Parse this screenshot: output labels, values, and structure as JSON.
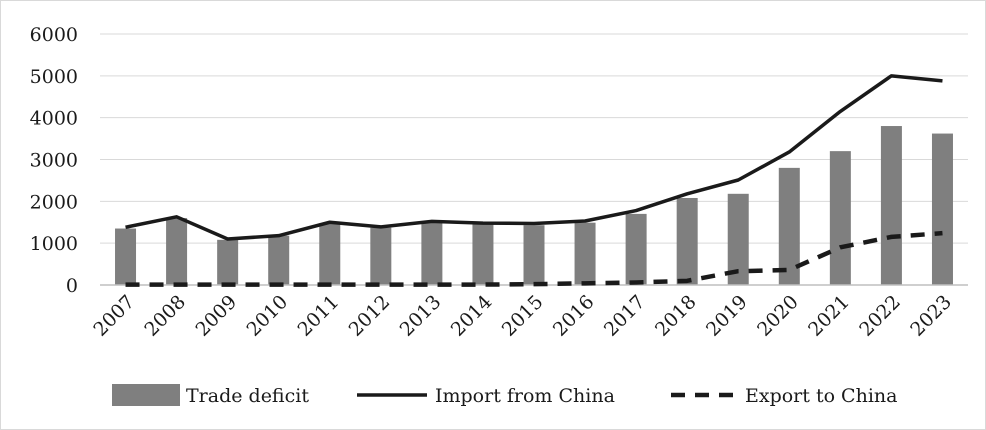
{
  "chart_data": {
    "type": "bar",
    "categories": [
      "2007",
      "2008",
      "2009",
      "2010",
      "2011",
      "2012",
      "2013",
      "2014",
      "2015",
      "2016",
      "2017",
      "2018",
      "2019",
      "2020",
      "2021",
      "2022",
      "2023"
    ],
    "ylim": [
      0,
      6000
    ],
    "yticks": [
      "0",
      "1000",
      "2000",
      "3000",
      "4000",
      "5000",
      "6000"
    ],
    "grid": true,
    "legend_position": "bottom",
    "series": [
      {
        "name": "Trade deficit",
        "kind": "bar",
        "color": "#7f7f7f",
        "values": [
          1350,
          1600,
          1080,
          1180,
          1470,
          1370,
          1510,
          1450,
          1430,
          1490,
          1700,
          2080,
          2180,
          2800,
          3200,
          3800,
          3620
        ]
      },
      {
        "name": "Import from China",
        "kind": "line",
        "style": "solid",
        "color": "#1a1a1a",
        "values": [
          1380,
          1630,
          1100,
          1180,
          1500,
          1390,
          1520,
          1480,
          1470,
          1530,
          1780,
          2180,
          2510,
          3180,
          4150,
          5000,
          4880
        ]
      },
      {
        "name": "Export to China",
        "kind": "line",
        "style": "dashed",
        "color": "#1a1a1a",
        "values": [
          10,
          10,
          10,
          10,
          10,
          10,
          10,
          10,
          20,
          40,
          60,
          100,
          330,
          360,
          900,
          1150,
          1240
        ]
      }
    ]
  }
}
